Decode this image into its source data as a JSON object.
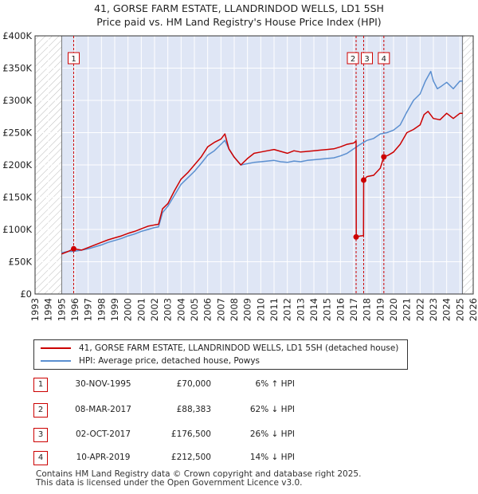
{
  "title_line1": "41, GORSE FARM ESTATE, LLANDRINDOD WELLS, LD1 5SH",
  "title_line2": "Price paid vs. HM Land Registry's House Price Index (HPI)",
  "colors": {
    "property_line": "#cc0000",
    "hpi_line": "#5b8fd0",
    "shade": "#dfe6f5",
    "hatch": "#bbbbbb",
    "marker_border": "#cc0000"
  },
  "chart_data": {
    "type": "line",
    "title": "Price paid vs. HM Land Registry's House Price Index (HPI)",
    "xlabel": "",
    "ylabel": "",
    "xlim": [
      1993,
      2026
    ],
    "ylim": [
      0,
      400000
    ],
    "x_ticks": [
      1993,
      1994,
      1995,
      1996,
      1997,
      1998,
      1999,
      2000,
      2001,
      2002,
      2003,
      2004,
      2005,
      2006,
      2007,
      2008,
      2009,
      2010,
      2011,
      2012,
      2013,
      2014,
      2015,
      2016,
      2017,
      2018,
      2019,
      2020,
      2021,
      2022,
      2023,
      2024,
      2025,
      2026
    ],
    "x_tick_labels": [
      "1993",
      "1994",
      "1995",
      "1996",
      "1997",
      "1998",
      "1999",
      "2000",
      "2001",
      "2002",
      "2003",
      "2004",
      "2005",
      "2006",
      "2007",
      "2008",
      "2009",
      "2010",
      "2011",
      "2012",
      "2013",
      "2014",
      "2015",
      "2016",
      "2017",
      "2018",
      "2019",
      "2020",
      "2021",
      "2022",
      "2023",
      "2024",
      "2025",
      "2026"
    ],
    "y_ticks": [
      0,
      50000,
      100000,
      150000,
      200000,
      250000,
      300000,
      350000,
      400000
    ],
    "y_tick_labels": [
      "£0",
      "£50K",
      "£100K",
      "£150K",
      "£200K",
      "£250K",
      "£300K",
      "£350K",
      "£400K"
    ],
    "grid": true,
    "legend_position": "below",
    "shaded_region": [
      1995.0,
      2025.2
    ],
    "hatched_before": 1995.0,
    "hatched_after": 2025.2,
    "series": [
      {
        "name": "41, GORSE FARM ESTATE, LLANDRINDOD WELLS, LD1 5SH (detached house)",
        "key": "property",
        "x": [
          1995.0,
          1995.5,
          1995.91,
          1996.5,
          1997.0,
          1997.5,
          1998.0,
          1998.5,
          1999.0,
          1999.5,
          2000.0,
          2000.5,
          2001.0,
          2001.5,
          2002.0,
          2002.3,
          2002.6,
          2003.0,
          2003.5,
          2004.0,
          2004.5,
          2005.0,
          2005.5,
          2006.0,
          2006.5,
          2007.0,
          2007.3,
          2007.6,
          2008.0,
          2008.5,
          2009.0,
          2009.5,
          2010.0,
          2010.5,
          2011.0,
          2011.5,
          2012.0,
          2012.5,
          2013.0,
          2013.5,
          2014.0,
          2014.5,
          2015.0,
          2015.5,
          2016.0,
          2016.5,
          2017.0,
          2017.18,
          2017.19,
          2017.5,
          2017.74,
          2017.75,
          2018.0,
          2018.5,
          2019.0,
          2019.27,
          2019.6,
          2020.0,
          2020.5,
          2021.0,
          2021.5,
          2022.0,
          2022.3,
          2022.6,
          2023.0,
          2023.5,
          2024.0,
          2024.5,
          2025.0,
          2025.2
        ],
        "y": [
          62000,
          66000,
          70000,
          68000,
          72000,
          76000,
          80000,
          84000,
          87000,
          90000,
          94000,
          97000,
          101000,
          105000,
          107000,
          108000,
          132000,
          140000,
          160000,
          178000,
          188000,
          200000,
          212000,
          228000,
          235000,
          240000,
          248000,
          225000,
          212000,
          200000,
          210000,
          218000,
          220000,
          222000,
          224000,
          221000,
          218000,
          222000,
          220000,
          221000,
          222000,
          223000,
          224000,
          225000,
          228000,
          232000,
          234000,
          237000,
          88383,
          90000,
          90500,
          176500,
          182000,
          184000,
          195000,
          212500,
          215000,
          220000,
          232000,
          250000,
          255000,
          262000,
          278000,
          283000,
          272000,
          270000,
          280000,
          272000,
          280000,
          280000
        ]
      },
      {
        "name": "HPI: Average price, detached house, Powys",
        "key": "hpi",
        "x": [
          1995.0,
          1995.5,
          1995.91,
          1996.5,
          1997.0,
          1997.5,
          1998.0,
          1998.5,
          1999.0,
          1999.5,
          2000.0,
          2000.5,
          2001.0,
          2001.5,
          2002.0,
          2002.3,
          2002.6,
          2003.0,
          2003.5,
          2004.0,
          2004.5,
          2005.0,
          2005.5,
          2006.0,
          2006.5,
          2007.0,
          2007.3,
          2007.6,
          2008.0,
          2008.5,
          2009.0,
          2009.5,
          2010.0,
          2010.5,
          2011.0,
          2011.5,
          2012.0,
          2012.5,
          2013.0,
          2013.5,
          2014.0,
          2014.5,
          2015.0,
          2015.5,
          2016.0,
          2016.5,
          2017.0,
          2017.5,
          2018.0,
          2018.5,
          2019.0,
          2019.5,
          2020.0,
          2020.5,
          2021.0,
          2021.5,
          2022.0,
          2022.4,
          2022.8,
          2023.0,
          2023.3,
          2023.6,
          2024.0,
          2024.5,
          2025.0,
          2025.2
        ],
        "y": [
          64000,
          66000,
          66000,
          68000,
          70000,
          73000,
          76000,
          80000,
          83000,
          86000,
          90000,
          93000,
          97000,
          100000,
          103000,
          104000,
          126000,
          136000,
          153000,
          170000,
          180000,
          190000,
          202000,
          215000,
          222000,
          232000,
          238000,
          225000,
          212000,
          200000,
          202000,
          204000,
          205000,
          206000,
          207000,
          205000,
          204000,
          206000,
          205000,
          207000,
          208000,
          209000,
          210000,
          211000,
          214000,
          218000,
          225000,
          232000,
          238000,
          241000,
          248000,
          250000,
          254000,
          262000,
          282000,
          300000,
          310000,
          330000,
          345000,
          330000,
          318000,
          322000,
          328000,
          318000,
          330000,
          330000
        ]
      }
    ],
    "sales": [
      {
        "label": "1",
        "x": 1995.91,
        "y": 70000
      },
      {
        "label": "2",
        "x": 2017.18,
        "y": 88383
      },
      {
        "label": "3",
        "x": 2017.75,
        "y": 176500
      },
      {
        "label": "4",
        "x": 2019.27,
        "y": 212500
      }
    ]
  },
  "legend": {
    "property_label": "41, GORSE FARM ESTATE, LLANDRINDOD WELLS, LD1 5SH (detached house)",
    "hpi_label": "HPI: Average price, detached house, Powys"
  },
  "sales_table": [
    {
      "num": "1",
      "date": "30-NOV-1995",
      "price": "£70,000",
      "hpi": "6% ↑ HPI"
    },
    {
      "num": "2",
      "date": "08-MAR-2017",
      "price": "£88,383",
      "hpi": "62% ↓ HPI"
    },
    {
      "num": "3",
      "date": "02-OCT-2017",
      "price": "£176,500",
      "hpi": "26% ↓ HPI"
    },
    {
      "num": "4",
      "date": "10-APR-2019",
      "price": "£212,500",
      "hpi": "14% ↓ HPI"
    }
  ],
  "footer": {
    "line1": "Contains HM Land Registry data © Crown copyright and database right 2025.",
    "line2": "This data is licensed under the Open Government Licence v3.0."
  }
}
